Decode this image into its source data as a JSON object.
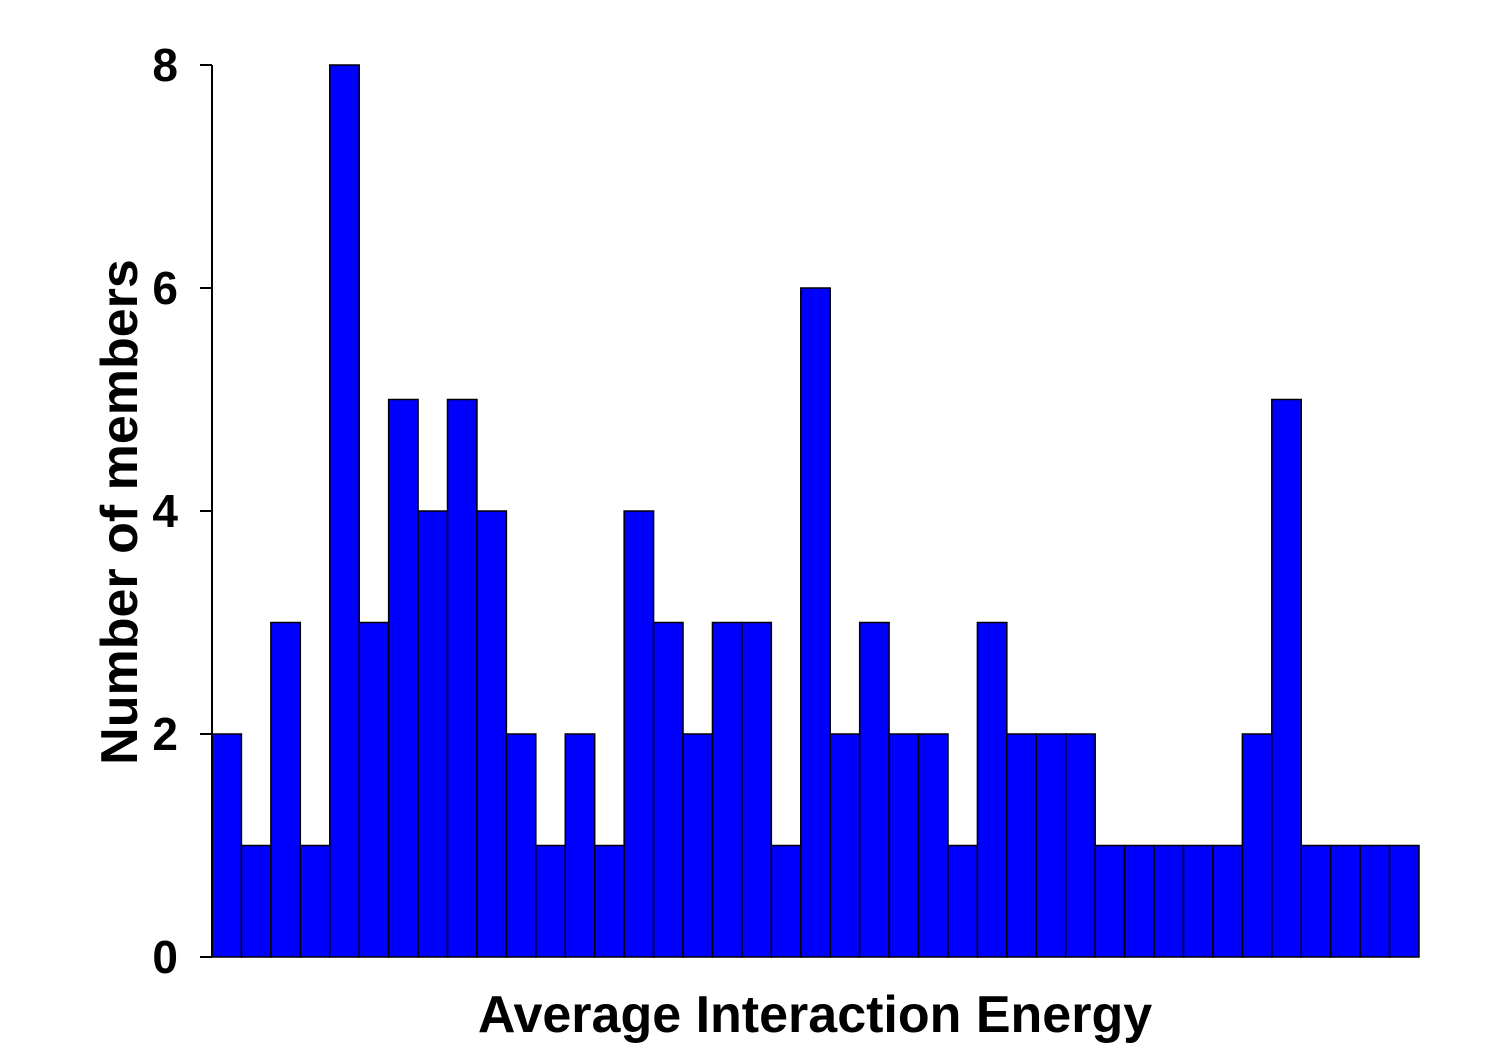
{
  "chart_data": {
    "type": "bar",
    "title": "",
    "xlabel": "Average Interaction Energy",
    "ylabel": "Number of members",
    "ylim": [
      0,
      8
    ],
    "yticks": [
      0,
      2,
      4,
      6,
      8
    ],
    "grid": false,
    "legend": "none",
    "bar_color": "#0000ff",
    "edge_color": "#000000",
    "values": [
      2,
      1,
      3,
      1,
      8,
      3,
      5,
      4,
      5,
      4,
      2,
      1,
      2,
      1,
      4,
      3,
      2,
      3,
      3,
      1,
      6,
      2,
      3,
      2,
      2,
      1,
      3,
      2,
      2,
      2,
      1,
      1,
      1,
      1,
      1,
      2,
      5,
      1,
      1,
      1,
      1
    ]
  }
}
